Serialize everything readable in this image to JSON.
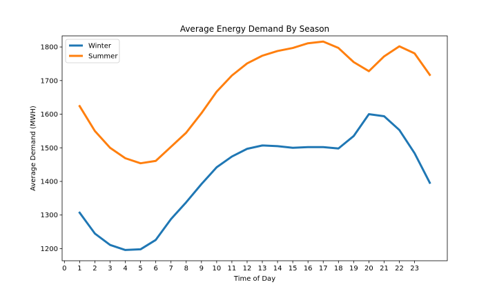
{
  "chart_data": {
    "type": "line",
    "title": "Average Energy Demand By Season",
    "xlabel": "Time of Day",
    "ylabel": "Average Demand (MWH)",
    "x": [
      1,
      2,
      3,
      4,
      5,
      6,
      7,
      8,
      9,
      10,
      11,
      12,
      13,
      14,
      15,
      16,
      17,
      18,
      19,
      20,
      21,
      22,
      23,
      24
    ],
    "x_ticks": [
      0,
      1,
      2,
      3,
      4,
      5,
      6,
      7,
      8,
      9,
      10,
      11,
      12,
      13,
      14,
      15,
      16,
      17,
      18,
      19,
      20,
      21,
      22,
      23
    ],
    "xlim": [
      -0.15,
      25.15
    ],
    "y_ticks": [
      1200,
      1300,
      1400,
      1500,
      1600,
      1700,
      1800
    ],
    "ylim": [
      1164,
      1833
    ],
    "grid": false,
    "legend_position": "top-left",
    "series": [
      {
        "name": "Winter",
        "color": "#1f77b4",
        "values": [
          1307,
          1245,
          1211,
          1196,
          1198,
          1226,
          1288,
          1338,
          1392,
          1442,
          1474,
          1497,
          1507,
          1505,
          1500,
          1502,
          1502,
          1498,
          1535,
          1600,
          1594,
          1553,
          1484,
          1396
        ]
      },
      {
        "name": "Summer",
        "color": "#ff7f0e",
        "values": [
          1624,
          1550,
          1500,
          1469,
          1454,
          1461,
          1503,
          1545,
          1603,
          1667,
          1715,
          1751,
          1774,
          1788,
          1797,
          1811,
          1816,
          1797,
          1755,
          1728,
          1772,
          1802,
          1781,
          1717
        ]
      }
    ]
  }
}
